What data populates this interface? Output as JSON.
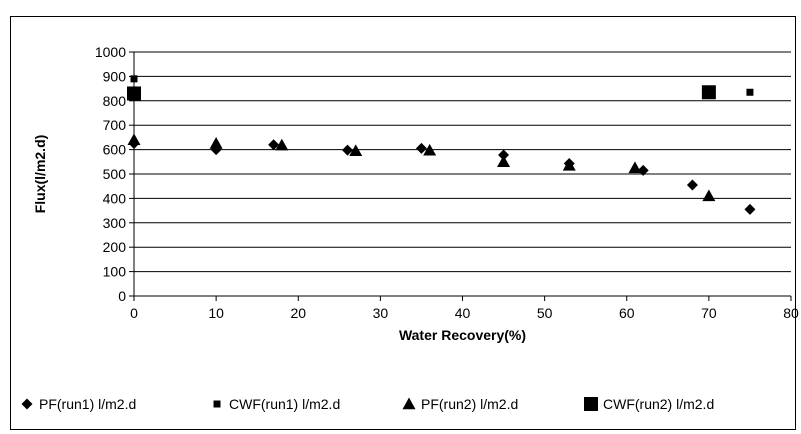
{
  "chart_data": {
    "type": "scatter",
    "title": "",
    "xlabel": "Water Recovery(%)",
    "ylabel": "Flux(l/m2.d)",
    "xlim": [
      0,
      80
    ],
    "ylim": [
      0,
      1000
    ],
    "x_ticks": [
      "0",
      "10",
      "20",
      "30",
      "40",
      "50",
      "60",
      "70",
      "80"
    ],
    "y_ticks": [
      "0",
      "100",
      "200",
      "300",
      "400",
      "500",
      "600",
      "700",
      "800",
      "900",
      "1000"
    ],
    "grid": "horizontal",
    "legend_position": "bottom",
    "series": [
      {
        "name": "PF(run1) l/m2.d",
        "marker": "diamond",
        "color": "#000000",
        "points": [
          [
            0,
            625
          ],
          [
            10,
            600
          ],
          [
            17,
            620
          ],
          [
            26,
            598
          ],
          [
            35,
            605
          ],
          [
            45,
            578
          ],
          [
            53,
            543
          ],
          [
            62,
            515
          ],
          [
            68,
            455
          ],
          [
            75,
            355
          ]
        ]
      },
      {
        "name": "CWF(run1) l/m2.d",
        "marker": "small-square",
        "color": "#000000",
        "points": [
          [
            0,
            890
          ],
          [
            75,
            835
          ]
        ]
      },
      {
        "name": "PF(run2) l/m2.d",
        "marker": "triangle",
        "color": "#000000",
        "points": [
          [
            0,
            640
          ],
          [
            10,
            625
          ],
          [
            18,
            618
          ],
          [
            27,
            595
          ],
          [
            36,
            597
          ],
          [
            45,
            550
          ],
          [
            53,
            535
          ],
          [
            61,
            525
          ],
          [
            70,
            410
          ]
        ]
      },
      {
        "name": "CWF(run2) l/m2.d",
        "marker": "big-square",
        "color": "#000000",
        "points": [
          [
            0,
            830
          ],
          [
            70,
            835
          ]
        ]
      }
    ]
  }
}
